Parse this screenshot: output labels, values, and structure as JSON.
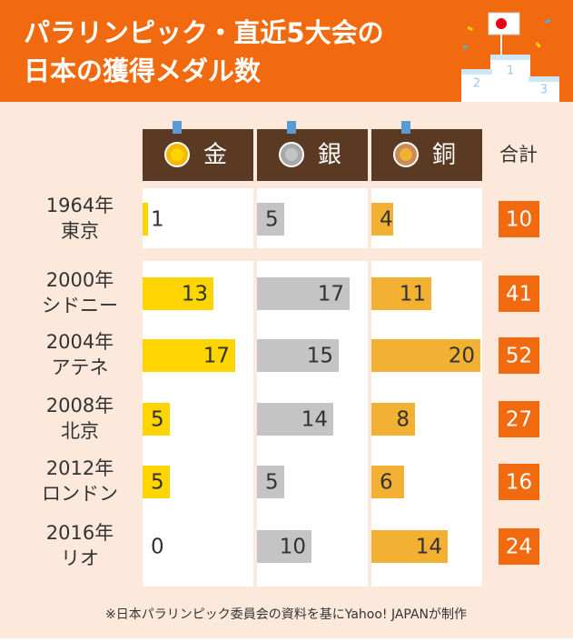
{
  "chart_data": {
    "type": "bar",
    "title": [
      "パラリンピック・直近5大会の",
      "日本の獲得メダル数"
    ],
    "categories": [
      [
        "1964年",
        "東京"
      ],
      [
        "2000年",
        "シドニー"
      ],
      [
        "2004年",
        "アテネ"
      ],
      [
        "2008年",
        "北京"
      ],
      [
        "2012年",
        "ロンドン"
      ],
      [
        "2016年",
        "リオ"
      ]
    ],
    "series": [
      {
        "name": "金",
        "color": "#ffd500",
        "values": [
          1,
          13,
          17,
          5,
          5,
          0
        ]
      },
      {
        "name": "銀",
        "color": "#c4c4c4",
        "values": [
          5,
          17,
          15,
          14,
          5,
          10
        ]
      },
      {
        "name": "銅",
        "color": "#f2b133",
        "values": [
          4,
          11,
          20,
          8,
          6,
          14
        ]
      }
    ],
    "total_label": "合計",
    "totals": [
      10,
      41,
      52,
      27,
      16,
      24
    ],
    "xlim": [
      0,
      20
    ],
    "note": "※日本パラリンピック委員会の資料を基にYahoo! JAPANが制作"
  }
}
